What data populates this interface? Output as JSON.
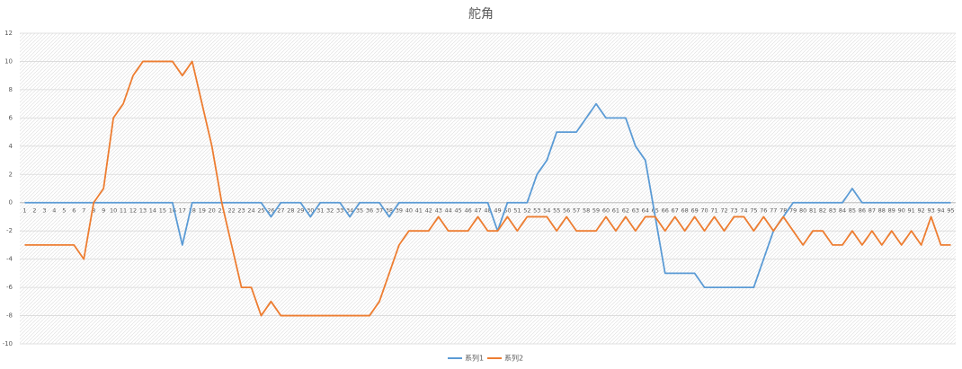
{
  "chart_data": {
    "type": "line",
    "title": "舵角",
    "categories": [
      "1",
      "2",
      "3",
      "4",
      "5",
      "6",
      "7",
      "8",
      "9",
      "10",
      "11",
      "12",
      "13",
      "14",
      "15",
      "16",
      "17",
      "18",
      "19",
      "20",
      "21",
      "22",
      "23",
      "24",
      "25",
      "26",
      "27",
      "28",
      "29",
      "30",
      "31",
      "32",
      "33",
      "34",
      "35",
      "36",
      "37",
      "38",
      "39",
      "40",
      "41",
      "42",
      "43",
      "44",
      "45",
      "46",
      "47",
      "48",
      "49",
      "50",
      "51",
      "52",
      "53",
      "54",
      "55",
      "56",
      "57",
      "58",
      "59",
      "60",
      "61",
      "62",
      "63",
      "64",
      "65",
      "66",
      "67",
      "68",
      "69",
      "70",
      "71",
      "72",
      "73",
      "74",
      "75",
      "76",
      "77",
      "78",
      "79",
      "80",
      "81",
      "82",
      "83",
      "84",
      "85",
      "86",
      "87",
      "88",
      "89",
      "90",
      "91",
      "92",
      "93",
      "94",
      "95"
    ],
    "series": [
      {
        "name": "系列1",
        "color": "#5b9bd5",
        "values": [
          0,
          0,
          0,
          0,
          0,
          0,
          0,
          0,
          0,
          0,
          0,
          0,
          0,
          0,
          0,
          0,
          -3,
          0,
          0,
          0,
          0,
          0,
          0,
          0,
          0,
          -1,
          0,
          0,
          0,
          -1,
          0,
          0,
          0,
          -1,
          0,
          0,
          0,
          -1,
          0,
          0,
          0,
          0,
          0,
          0,
          0,
          0,
          0,
          0,
          -2,
          0,
          0,
          0,
          2,
          3,
          5,
          5,
          5,
          6,
          7,
          6,
          6,
          6,
          4,
          3,
          -1,
          -5,
          -5,
          -5,
          -5,
          -6,
          -6,
          -6,
          -6,
          -6,
          -6,
          -4,
          -2,
          -1,
          0,
          0,
          0,
          0,
          0,
          0,
          1,
          0,
          0,
          0,
          0,
          0,
          0,
          0,
          0,
          0,
          0
        ]
      },
      {
        "name": "系列2",
        "color": "#ed7d31",
        "values": [
          -3,
          -3,
          -3,
          -3,
          -3,
          -3,
          -4,
          0,
          1,
          6,
          7,
          9,
          10,
          10,
          10,
          10,
          9,
          10,
          7,
          4,
          0,
          -3,
          -6,
          -6,
          -8,
          -7,
          -8,
          -8,
          -8,
          -8,
          -8,
          -8,
          -8,
          -8,
          -8,
          -8,
          -7,
          -5,
          -3,
          -2,
          -2,
          -2,
          -1,
          -2,
          -2,
          -2,
          -1,
          -2,
          -2,
          -1,
          -2,
          -1,
          -1,
          -1,
          -2,
          -1,
          -2,
          -2,
          -2,
          -1,
          -2,
          -1,
          -2,
          -1,
          -1,
          -2,
          -1,
          -2,
          -1,
          -2,
          -1,
          -2,
          -1,
          -1,
          -2,
          -1,
          -2,
          -1,
          -2,
          -3,
          -2,
          -2,
          -3,
          -3,
          -2,
          -3,
          -2,
          -3,
          -2,
          -3,
          -2,
          -3,
          -1,
          -3,
          -3
        ]
      }
    ],
    "ylim": [
      -10,
      12
    ],
    "yticks": [
      -10,
      -8,
      -6,
      -4,
      -2,
      0,
      2,
      4,
      6,
      8,
      10,
      12
    ],
    "grid": true,
    "legend": "bottom"
  }
}
